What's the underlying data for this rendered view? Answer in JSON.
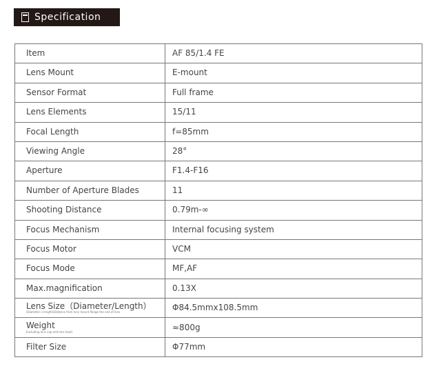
{
  "header": {
    "title": "Specification",
    "icon": "document-icon"
  },
  "rows": [
    {
      "label": "Item",
      "value": "AF 85/1.4 FE"
    },
    {
      "label": "Lens Mount",
      "value": "E-mount"
    },
    {
      "label": "Sensor Format",
      "value": "Full frame"
    },
    {
      "label": "Lens Elements",
      "value": "15/11"
    },
    {
      "label": "Focal Length",
      "value": "f=85mm"
    },
    {
      "label": "Viewing Angle",
      "value": "28°"
    },
    {
      "label": "Aperture",
      "value": "F1.4-F16"
    },
    {
      "label": "Number of Aperture Blades",
      "value": "11"
    },
    {
      "label": "Shooting Distance",
      "value": "0.79m-∞"
    },
    {
      "label": "Focus Mechanism",
      "value": "Internal focusing system"
    },
    {
      "label": "Focus Motor",
      "value": "VCM"
    },
    {
      "label": "Focus Mode",
      "value": "MF,AF"
    },
    {
      "label": "Max.magnification",
      "value": "0.13X"
    },
    {
      "label": "Lens Size（Diameter/Length）",
      "note": "(Diameter x length)Distance from lens mount flange the end of lens",
      "value": "Φ84.5mmx108.5mm"
    },
    {
      "label": "Weight",
      "note": "Excluding lens cap and lens hood",
      "value": "≈800g"
    },
    {
      "label": "Filter Size",
      "value": "Φ77mm"
    }
  ]
}
